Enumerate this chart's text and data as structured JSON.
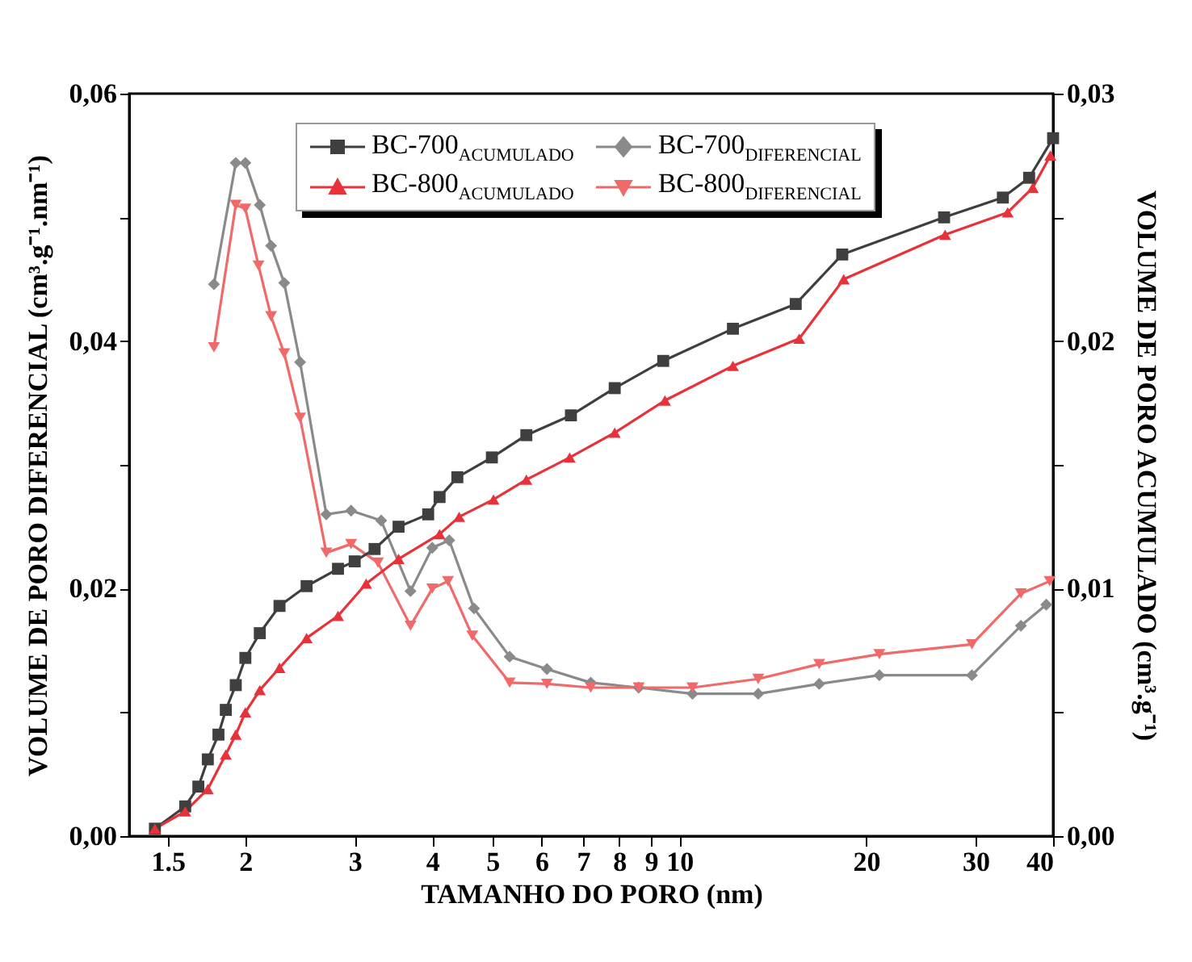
{
  "chart_data": {
    "type": "line",
    "xlabel": "TAMANHO DO PORO (nm)",
    "ylabel": "VOLUME DE PORO DIFERENCIAL (cm³.g⁻¹.nm⁻¹)",
    "y2label": "VOLUME DE PORO ACUMULADO (cm³.g⁻¹)",
    "log": "x",
    "grid": false,
    "legend": "top",
    "line_style": "solid",
    "xlim": [
      1.3,
      40
    ],
    "xticks": [
      1.5,
      2,
      3,
      4,
      5,
      6,
      7,
      8,
      9,
      10,
      20,
      30,
      40
    ],
    "ylim": [
      0,
      0.06
    ],
    "yticks": [
      {
        "value": 0,
        "label": "0,00"
      },
      {
        "value": 0.01,
        "label": null
      },
      {
        "value": 0.02,
        "label": "0,02"
      },
      {
        "value": 0.03,
        "label": null
      },
      {
        "value": 0.04,
        "label": "0,04"
      },
      {
        "value": 0.05,
        "label": null
      },
      {
        "value": 0.06,
        "label": "0,06"
      }
    ],
    "y2lim": [
      0,
      0.03
    ],
    "y2ticks": [
      {
        "value": 0,
        "label": "0,00"
      },
      {
        "value": 0.005,
        "label": null
      },
      {
        "value": 0.01,
        "label": "0,01"
      },
      {
        "value": 0.015,
        "label": null
      },
      {
        "value": 0.02,
        "label": "0,02"
      },
      {
        "value": 0.025,
        "label": null
      },
      {
        "value": 0.03,
        "label": "0,03"
      }
    ],
    "series": [
      {
        "name": "BC-700$_{ACUMULADO}$",
        "color": "#3f3f3f",
        "marker": "square",
        "axis": "y2",
        "x": [
          1.43,
          1.6,
          1.68,
          1.74,
          1.81,
          1.86,
          1.93,
          2.0,
          2.11,
          2.27,
          2.51,
          2.82,
          3.0,
          3.23,
          3.53,
          3.94,
          4.11,
          4.39,
          4.99,
          5.67,
          6.69,
          7.87,
          9.42,
          12.2,
          15.4,
          18.3,
          26.7,
          33.2,
          36.6,
          40
        ],
        "values": [
          0.0003,
          0.0012,
          0.002,
          0.0031,
          0.0041,
          0.0051,
          0.0061,
          0.0072,
          0.0082,
          0.0093,
          0.0101,
          0.0108,
          0.0111,
          0.0116,
          0.0125,
          0.013,
          0.0137,
          0.0145,
          0.0153,
          0.0162,
          0.017,
          0.0181,
          0.0192,
          0.0205,
          0.0215,
          0.0235,
          0.025,
          0.0258,
          0.0266,
          0.0282
        ]
      },
      {
        "name": "BC-700$_{DIFERENCIAL}$",
        "color": "#8a8a8a",
        "marker": "diamond",
        "x": [
          1.78,
          1.93,
          2.0,
          2.11,
          2.2,
          2.31,
          2.45,
          2.7,
          2.96,
          3.31,
          3.69,
          4.0,
          4.26,
          4.67,
          5.33,
          6.12,
          7.2,
          8.6,
          10.5,
          13.4,
          16.8,
          21.0,
          29.6,
          35.5,
          39.0
        ],
        "values": [
          0.0446,
          0.0544,
          0.0544,
          0.051,
          0.0477,
          0.0447,
          0.0383,
          0.026,
          0.0263,
          0.0255,
          0.0198,
          0.0233,
          0.0239,
          0.0184,
          0.0145,
          0.0135,
          0.0124,
          0.012,
          0.0115,
          0.0115,
          0.0123,
          0.013,
          0.013,
          0.017,
          0.0187
        ]
      },
      {
        "name": "BC-800$_{ACUMULADO}$",
        "color": "#e8323a",
        "marker": "triangle",
        "axis": "y2",
        "x": [
          1.43,
          1.6,
          1.74,
          1.86,
          1.93,
          2.0,
          2.11,
          2.27,
          2.51,
          2.82,
          3.13,
          3.53,
          4.11,
          4.42,
          5.02,
          5.67,
          6.66,
          7.87,
          9.48,
          12.2,
          15.6,
          18.4,
          26.8,
          33.8,
          37.1,
          39.6
        ],
        "values": [
          0.0003,
          0.001,
          0.0019,
          0.0033,
          0.0041,
          0.005,
          0.0059,
          0.0068,
          0.008,
          0.0089,
          0.0102,
          0.0112,
          0.0122,
          0.0129,
          0.0136,
          0.0144,
          0.0153,
          0.0163,
          0.0176,
          0.019,
          0.0201,
          0.0225,
          0.0243,
          0.0252,
          0.0262,
          0.0275
        ]
      },
      {
        "name": "BC-800$_{DIFERENCIAL}$",
        "color": "#f06a6a",
        "marker": "triangle-down",
        "x": [
          1.78,
          1.93,
          2.0,
          2.1,
          2.2,
          2.31,
          2.45,
          2.7,
          2.96,
          3.27,
          3.69,
          4.0,
          4.24,
          4.64,
          5.33,
          6.12,
          7.2,
          8.6,
          10.5,
          13.4,
          16.8,
          21.0,
          29.6,
          35.5,
          39.5
        ],
        "values": [
          0.0395,
          0.051,
          0.0507,
          0.0461,
          0.042,
          0.039,
          0.0338,
          0.0229,
          0.0236,
          0.0221,
          0.017,
          0.02,
          0.0206,
          0.0162,
          0.0124,
          0.0123,
          0.012,
          0.012,
          0.012,
          0.0127,
          0.0139,
          0.0147,
          0.0155,
          0.0196,
          0.0206
        ]
      }
    ]
  }
}
